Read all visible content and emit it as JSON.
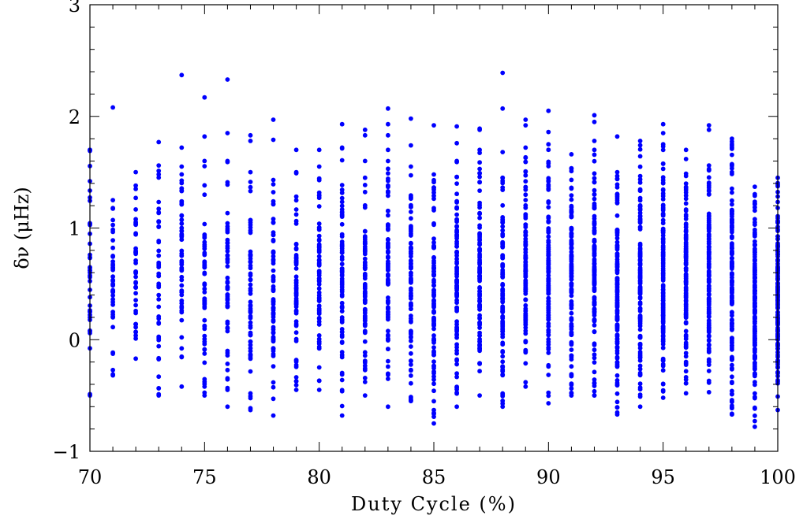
{
  "chart_data": {
    "type": "scatter",
    "title": "",
    "xlabel": "Duty Cycle (%)",
    "ylabel": "δν (μHz)",
    "xlim": [
      70,
      100
    ],
    "ylim": [
      -1,
      3
    ],
    "x_ticks": [
      70,
      75,
      80,
      85,
      90,
      95,
      100
    ],
    "x_tick_labels": [
      "70",
      "75",
      "80",
      "85",
      "90",
      "95",
      "100"
    ],
    "y_ticks": [
      -1,
      0,
      1,
      2,
      3
    ],
    "y_tick_labels": [
      "−1",
      "0",
      "1",
      "2",
      "3"
    ],
    "grid": false,
    "marker_color": "#0000ff",
    "series": [
      {
        "columns": [
          {
            "x": 70,
            "min": -0.5,
            "max": 1.7,
            "n": 36,
            "outliers": [
              1.7
            ]
          },
          {
            "x": 71,
            "min": -0.32,
            "max": 1.25,
            "n": 40,
            "outliers": [
              2.08
            ]
          },
          {
            "x": 72,
            "min": -0.17,
            "max": 1.38,
            "n": 42,
            "outliers": [
              1.5
            ]
          },
          {
            "x": 73,
            "min": -0.5,
            "max": 1.56,
            "n": 44,
            "outliers": [
              1.77
            ]
          },
          {
            "x": 74,
            "min": -0.42,
            "max": 1.55,
            "n": 48,
            "outliers": [
              1.72,
              2.37
            ]
          },
          {
            "x": 75,
            "min": -0.5,
            "max": 1.6,
            "n": 52,
            "outliers": [
              1.82,
              2.17
            ]
          },
          {
            "x": 76,
            "min": -0.6,
            "max": 1.6,
            "n": 56,
            "outliers": [
              1.85,
              2.33
            ]
          },
          {
            "x": 77,
            "min": -0.63,
            "max": 1.5,
            "n": 60,
            "outliers": [
              1.78,
              1.83
            ]
          },
          {
            "x": 78,
            "min": -0.68,
            "max": 1.43,
            "n": 64,
            "outliers": [
              1.79,
              1.97
            ]
          },
          {
            "x": 79,
            "min": -0.45,
            "max": 1.5,
            "n": 64,
            "outliers": [
              1.7
            ]
          },
          {
            "x": 80,
            "min": -0.45,
            "max": 1.55,
            "n": 66,
            "outliers": [
              1.7
            ]
          },
          {
            "x": 81,
            "min": -0.68,
            "max": 1.72,
            "n": 72,
            "outliers": [
              1.93
            ]
          },
          {
            "x": 82,
            "min": -0.5,
            "max": 1.45,
            "n": 76,
            "outliers": [
              1.6,
              1.83,
              1.88
            ]
          },
          {
            "x": 83,
            "min": -0.6,
            "max": 1.7,
            "n": 84,
            "outliers": [
              1.83,
              1.93,
              2.07
            ]
          },
          {
            "x": 84,
            "min": -0.55,
            "max": 1.55,
            "n": 86,
            "outliers": [
              1.74,
              1.98
            ]
          },
          {
            "x": 85,
            "min": -0.75,
            "max": 1.48,
            "n": 88,
            "outliers": [
              1.92
            ]
          },
          {
            "x": 86,
            "min": -0.6,
            "max": 1.6,
            "n": 92,
            "outliers": [
              1.76,
              1.91
            ]
          },
          {
            "x": 87,
            "min": -0.5,
            "max": 1.7,
            "n": 100,
            "outliers": [
              1.88,
              1.89
            ]
          },
          {
            "x": 88,
            "min": -0.6,
            "max": 1.45,
            "n": 104,
            "outliers": [
              1.68,
              2.07,
              2.39
            ]
          },
          {
            "x": 89,
            "min": -0.42,
            "max": 1.72,
            "n": 108,
            "outliers": [
              1.92,
              1.97
            ]
          },
          {
            "x": 90,
            "min": -0.57,
            "max": 1.75,
            "n": 112,
            "outliers": [
              1.86,
              2.05
            ]
          },
          {
            "x": 91,
            "min": -0.5,
            "max": 1.66,
            "n": 116,
            "outliers": []
          },
          {
            "x": 92,
            "min": -0.5,
            "max": 1.7,
            "n": 120,
            "outliers": [
              1.78,
              1.95,
              2.01
            ]
          },
          {
            "x": 93,
            "min": -0.67,
            "max": 1.5,
            "n": 124,
            "outliers": [
              1.82
            ]
          },
          {
            "x": 94,
            "min": -0.6,
            "max": 1.78,
            "n": 130,
            "outliers": []
          },
          {
            "x": 95,
            "min": -0.52,
            "max": 1.75,
            "n": 136,
            "outliers": [
              1.85,
              1.93
            ]
          },
          {
            "x": 96,
            "min": -0.48,
            "max": 1.7,
            "n": 140,
            "outliers": []
          },
          {
            "x": 97,
            "min": -0.47,
            "max": 1.56,
            "n": 144,
            "outliers": [
              1.88,
              1.92
            ]
          },
          {
            "x": 98,
            "min": -0.67,
            "max": 1.8,
            "n": 150,
            "outliers": []
          },
          {
            "x": 99,
            "min": -0.78,
            "max": 1.37,
            "n": 156,
            "outliers": []
          },
          {
            "x": 100,
            "min": -0.63,
            "max": 1.45,
            "n": 150,
            "outliers": []
          }
        ]
      }
    ]
  }
}
